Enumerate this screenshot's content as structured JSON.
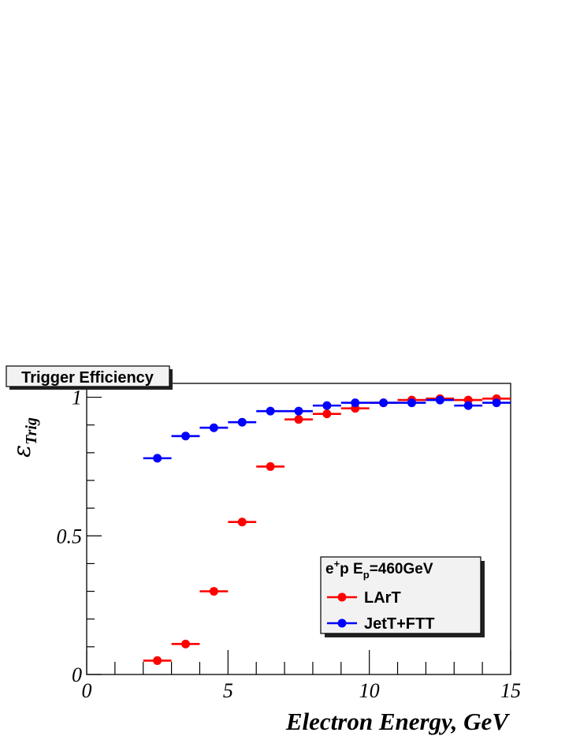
{
  "chart_data": {
    "type": "scatter",
    "title": "Trigger Efficiency",
    "xlabel": "Electron Energy, GeV",
    "ylabel": "ε",
    "ylabel_sub": "Trig",
    "xlim": [
      0,
      15
    ],
    "ylim": [
      0,
      1.05
    ],
    "x_ticks": [
      {
        "value": 0,
        "label": "0"
      },
      {
        "value": 5,
        "label": "5"
      },
      {
        "value": 10,
        "label": "10"
      },
      {
        "value": 15,
        "label": "15"
      }
    ],
    "y_ticks": [
      {
        "value": 0,
        "label": "0"
      },
      {
        "value": 0.5,
        "label": "0.5"
      },
      {
        "value": 1,
        "label": "1"
      }
    ],
    "grid": false,
    "legend": {
      "placement": "bottom-right",
      "header": "e",
      "header_sup": "+",
      "header_mid": "p E",
      "header_sub": "p",
      "header_tail": "=460GeV"
    },
    "series": [
      {
        "name": "LArT",
        "color": "#ff0000",
        "x": [
          2.5,
          3.5,
          4.5,
          5.5,
          6.5,
          7.5,
          8.5,
          9.5,
          10.5,
          11.5,
          12.5,
          13.5,
          14.5
        ],
        "x_err": 0.5,
        "y": [
          0.05,
          0.11,
          0.3,
          0.55,
          0.75,
          0.92,
          0.94,
          0.96,
          0.98,
          0.99,
          0.995,
          0.99,
          0.995
        ]
      },
      {
        "name": "JetT+FTT",
        "color": "#0000ff",
        "x": [
          2.5,
          3.5,
          4.5,
          5.5,
          6.5,
          7.5,
          8.5,
          9.5,
          10.5,
          11.5,
          12.5,
          13.5,
          14.5
        ],
        "x_err": 0.5,
        "y": [
          0.78,
          0.86,
          0.89,
          0.91,
          0.95,
          0.95,
          0.97,
          0.98,
          0.98,
          0.98,
          0.99,
          0.97,
          0.98
        ]
      }
    ]
  }
}
